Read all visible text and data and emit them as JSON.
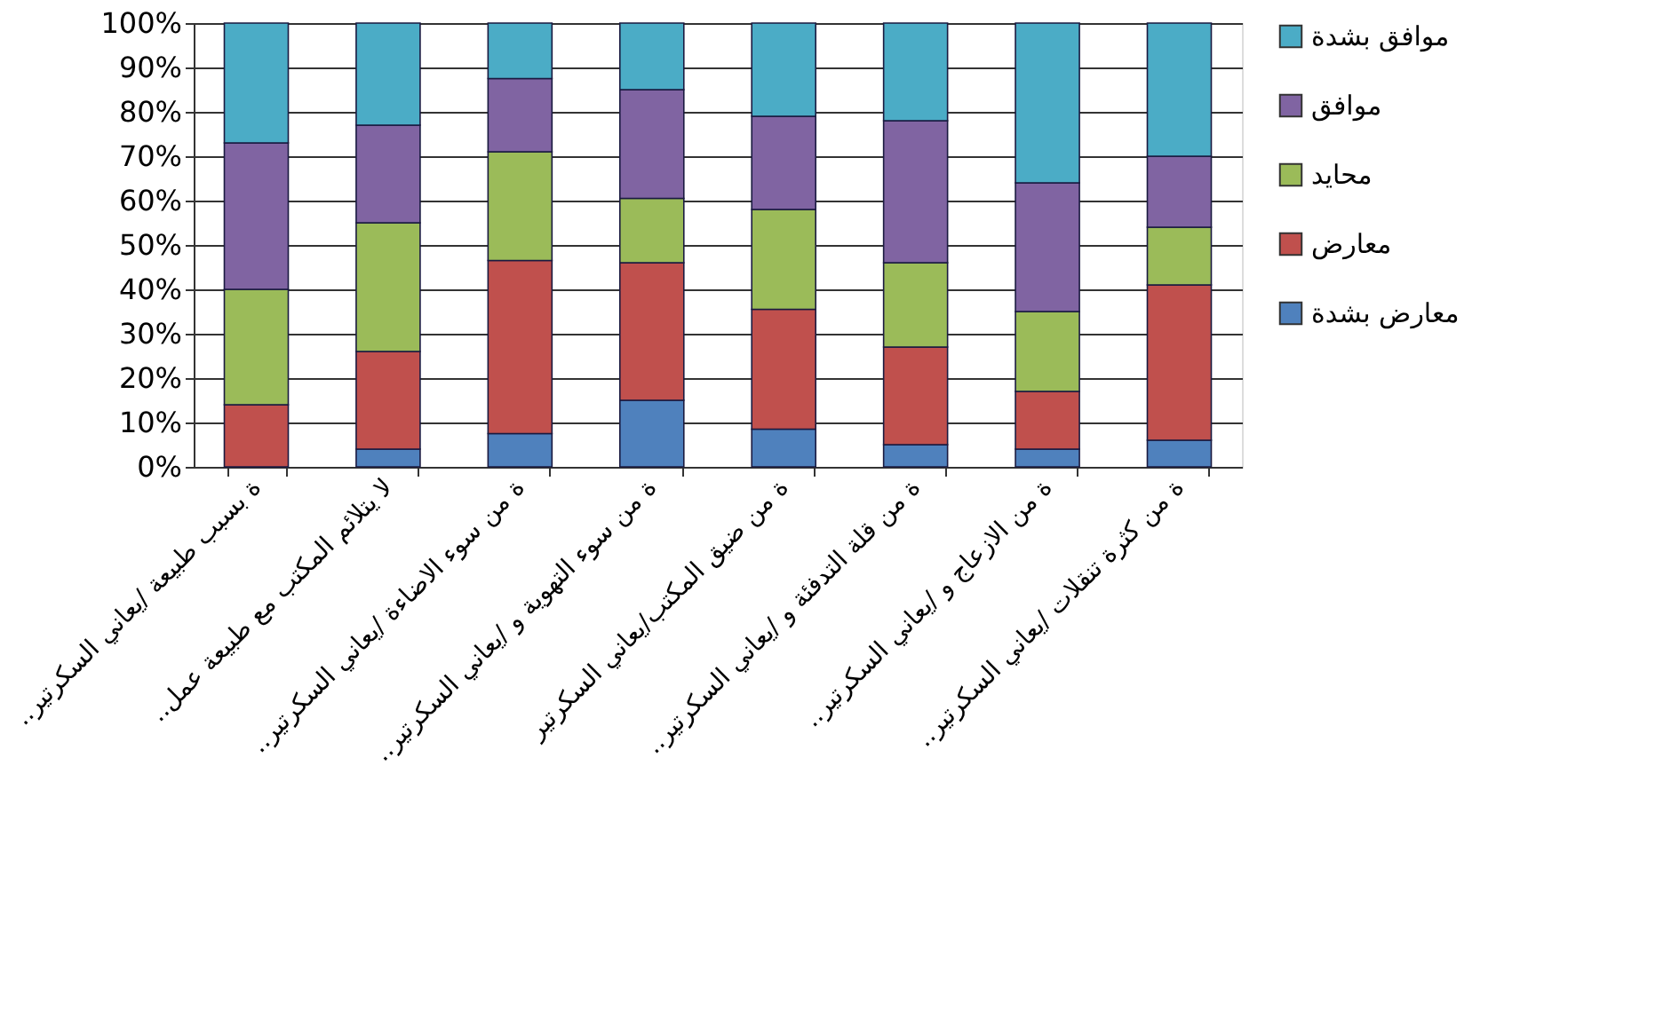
{
  "chart_data": {
    "type": "bar",
    "stacked": true,
    "categories": [
      "..ة بسبب طبيعة /يعاني السكرتير",
      "..لا يتلائم المكتب مع طبيعة عمل",
      "..ة من سوء الاضاءة /يعاني السكرتير",
      "..ة من سوء التهوية و /يعاني السكرتير",
      "ة من ضيق المكتب/يعاني السكرتير",
      "..ة من قلة التدفئة و /يعاني السكرتير",
      "..ة من الازعاج و /يعاني السكرتير",
      "..ة من كثرة تنقلات /يعاني السكرتير"
    ],
    "series": [
      {
        "name": "معارض بشدة",
        "color": "#4f81bd",
        "values": [
          0,
          4,
          7.5,
          15,
          8.5,
          5,
          4,
          6
        ]
      },
      {
        "name": "معارض",
        "color": "#c0504d",
        "values": [
          14,
          22,
          39,
          31,
          27,
          22,
          13,
          35
        ]
      },
      {
        "name": "محايد",
        "color": "#9bbb59",
        "values": [
          26,
          29,
          24.5,
          14.5,
          22.5,
          19,
          18,
          13
        ]
      },
      {
        "name": "موافق",
        "color": "#8064a2",
        "values": [
          33,
          22,
          16.5,
          24.5,
          21,
          32,
          29,
          16
        ]
      },
      {
        "name": "موافق بشدة",
        "color": "#4bacc6",
        "values": [
          27,
          23,
          12.5,
          15,
          21,
          22,
          36,
          30
        ]
      }
    ],
    "ylim": [
      0,
      100
    ],
    "yticks": [
      {
        "value": 0,
        "label": "0%"
      },
      {
        "value": 10,
        "label": "10%"
      },
      {
        "value": 20,
        "label": "20%"
      },
      {
        "value": 30,
        "label": "30%"
      },
      {
        "value": 40,
        "label": "40%"
      },
      {
        "value": 50,
        "label": "50%"
      },
      {
        "value": 60,
        "label": "60%"
      },
      {
        "value": 70,
        "label": "70%"
      },
      {
        "value": 80,
        "label": "80%"
      },
      {
        "value": 90,
        "label": "90%"
      },
      {
        "value": 100,
        "label": "100%"
      }
    ],
    "grid": "y",
    "legend": "right"
  }
}
